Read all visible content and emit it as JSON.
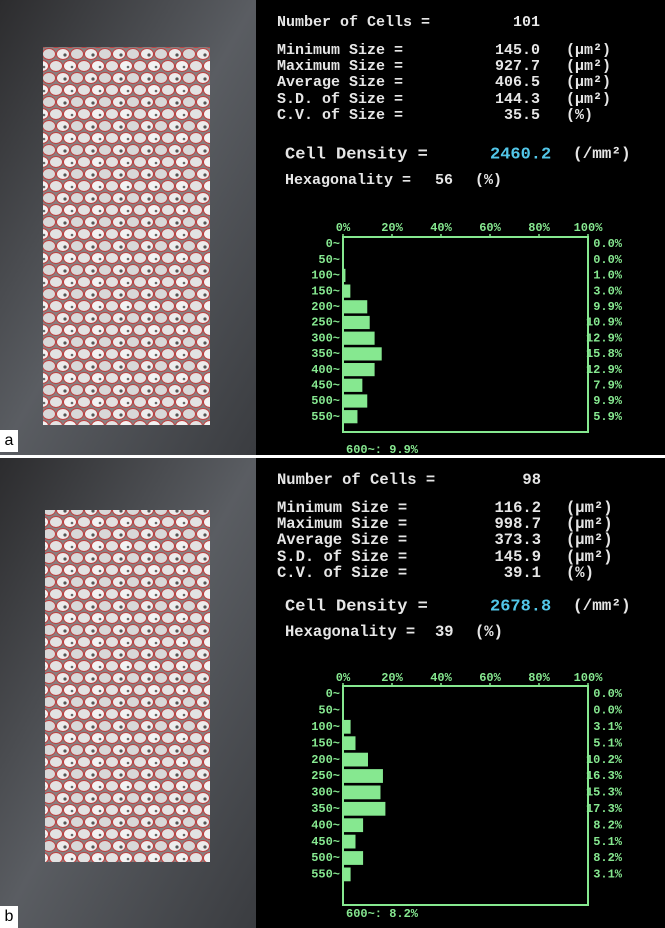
{
  "panels": [
    {
      "label": "a",
      "stats": [
        {
          "label": "Number of Cells =",
          "value": "101"
        },
        {
          "label": "Minimum Size =",
          "value": "145.0",
          "unit": "(µm²)"
        },
        {
          "label": "Maximum Size =",
          "value": "927.7",
          "unit": "(µm²)"
        },
        {
          "label": "Average Size =",
          "value": "406.5",
          "unit": "(µm²)"
        },
        {
          "label": "S.D. of Size =",
          "value": "144.3",
          "unit": "(µm²)"
        },
        {
          "label": "C.V. of Size =",
          "value": "35.5",
          "unit": "(%)"
        }
      ],
      "density": {
        "label": "Cell Density =",
        "value": "2460.2",
        "unit": "(/mm²)"
      },
      "hexagonality": {
        "label": "Hexagonality =",
        "value": "56",
        "unit": "(%)"
      },
      "histogram": {
        "xlim": [
          0,
          100
        ],
        "xticks": [
          {
            "value": 0,
            "label": "0%"
          },
          {
            "value": 20,
            "label": "20%"
          },
          {
            "value": 40,
            "label": "40%"
          },
          {
            "value": 60,
            "label": "60%"
          },
          {
            "value": 80,
            "label": "80%"
          },
          {
            "value": 100,
            "label": "100%"
          }
        ],
        "categories": [
          "0~",
          "50~",
          "100~",
          "150~",
          "200~",
          "250~",
          "300~",
          "350~",
          "400~",
          "450~",
          "500~",
          "550~"
        ],
        "values": [
          0,
          0,
          1,
          3,
          9.9,
          10.9,
          12.9,
          15.8,
          12.9,
          7.9,
          9.9,
          5.9
        ],
        "value_labels": [
          "0.0%",
          "0.0%",
          "1.0%",
          "3.0%",
          "9.9%",
          "10.9%",
          "12.9%",
          "15.8%",
          "12.9%",
          "7.9%",
          "9.9%",
          "5.9%"
        ],
        "overflow": "600~: 9.9%"
      }
    },
    {
      "label": "b",
      "stats": [
        {
          "label": "Number of Cells =",
          "value": "98"
        },
        {
          "label": "Minimum Size =",
          "value": "116.2",
          "unit": "(µm²)"
        },
        {
          "label": "Maximum Size =",
          "value": "998.7",
          "unit": "(µm²)"
        },
        {
          "label": "Average Size =",
          "value": "373.3",
          "unit": "(µm²)"
        },
        {
          "label": "S.D. of Size =",
          "value": "145.9",
          "unit": "(µm²)"
        },
        {
          "label": "C.V. of Size =",
          "value": "39.1",
          "unit": "(%)"
        }
      ],
      "density": {
        "label": "Cell Density =",
        "value": "2678.8",
        "unit": "(/mm²)"
      },
      "hexagonality": {
        "label": "Hexagonality =",
        "value": "39",
        "unit": "(%)"
      },
      "histogram": {
        "xlim": [
          0,
          100
        ],
        "xticks": [
          {
            "value": 0,
            "label": "0%"
          },
          {
            "value": 20,
            "label": "20%"
          },
          {
            "value": 40,
            "label": "40%"
          },
          {
            "value": 60,
            "label": "60%"
          },
          {
            "value": 80,
            "label": "80%"
          },
          {
            "value": 100,
            "label": "100%"
          }
        ],
        "categories": [
          "0~",
          "50~",
          "100~",
          "150~",
          "200~",
          "250~",
          "300~",
          "350~",
          "400~",
          "450~",
          "500~",
          "550~"
        ],
        "values": [
          0,
          0,
          3.1,
          5.1,
          10.2,
          16.3,
          15.3,
          17.3,
          8.2,
          5.1,
          8.2,
          3.1
        ],
        "value_labels": [
          "0.0%",
          "0.0%",
          "3.1%",
          "5.1%",
          "10.2%",
          "16.3%",
          "15.3%",
          "17.3%",
          "8.2%",
          "5.1%",
          "8.2%",
          "3.1%"
        ],
        "overflow": "600~: 8.2%"
      }
    }
  ]
}
